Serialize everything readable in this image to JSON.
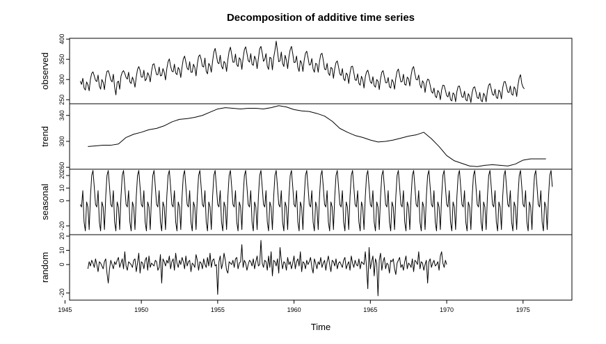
{
  "chart_data": {
    "type": "line",
    "title": "Decomposition of additive time series",
    "xlabel": "Time",
    "xlim": [
      1945.3,
      1978.2
    ],
    "x_ticks": [
      1945,
      1950,
      1955,
      1960,
      1965,
      1970,
      1975
    ],
    "x_tick_labels": [
      "1945",
      "1950",
      "1955",
      "1960",
      "1965",
      "1970",
      "1975"
    ],
    "line_color": "#000000",
    "grid": false,
    "legend": "none",
    "panels": [
      {
        "name": "observed",
        "ylabel": "observed",
        "ylim": [
          240,
          402
        ],
        "y_ticks": [
          250,
          300,
          350,
          400
        ],
        "y_tick_labels": [
          "250",
          "300",
          "350",
          "400"
        ],
        "x_start": 1946.0,
        "x_step": 0.0833333,
        "values": [
          296,
          288,
          303,
          279,
          274,
          294,
          287,
          272,
          301,
          315,
          319,
          309,
          298,
          295,
          311,
          284,
          276,
          300,
          293,
          275,
          305,
          320,
          322,
          312,
          299,
          294,
          313,
          281,
          262,
          293,
          296,
          276,
          308,
          318,
          322,
          315,
          305,
          301,
          318,
          294,
          290,
          306,
          297,
          281,
          306,
          325,
          332,
          323,
          306,
          306,
          323,
          297,
          301,
          317,
          310,
          294,
          320,
          337,
          339,
          325,
          312,
          312,
          331,
          309,
          310,
          327,
          318,
          299,
          326,
          344,
          351,
          333,
          321,
          319,
          338,
          316,
          312,
          330,
          324,
          305,
          331,
          351,
          358,
          343,
          328,
          324,
          344,
          318,
          318,
          338,
          330,
          309,
          338,
          357,
          361,
          350,
          333,
          331,
          353,
          320,
          314,
          340,
          334,
          318,
          345,
          368,
          377,
          360,
          342,
          339,
          360,
          333,
          326,
          345,
          340,
          320,
          349,
          370,
          380,
          362,
          343,
          343,
          363,
          337,
          332,
          354,
          349,
          325,
          353,
          374,
          381,
          365,
          347,
          343,
          364,
          338,
          335,
          358,
          350,
          327,
          352,
          376,
          382,
          366,
          345,
          350,
          364,
          333,
          325,
          355,
          353,
          324,
          354,
          372,
          395,
          370,
          344,
          346,
          368,
          340,
          332,
          360,
          348,
          327,
          356,
          374,
          382,
          364,
          342,
          343,
          358,
          330,
          320,
          347,
          341,
          320,
          348,
          365,
          370,
          354,
          336,
          337,
          352,
          326,
          318,
          340,
          338,
          318,
          344,
          362,
          365,
          348,
          326,
          324,
          340,
          316,
          310,
          330,
          327,
          303,
          327,
          342,
          346,
          331,
          314,
          310,
          327,
          302,
          297,
          316,
          312,
          290,
          316,
          332,
          333,
          317,
          299,
          298,
          314,
          290,
          286,
          308,
          300,
          279,
          306,
          319,
          323,
          310,
          294,
          290,
          307,
          285,
          281,
          300,
          296,
          275,
          302,
          318,
          322,
          307,
          292,
          292,
          305,
          282,
          279,
          300,
          294,
          276,
          303,
          320,
          326,
          310,
          294,
          295,
          313,
          288,
          286,
          306,
          302,
          284,
          310,
          327,
          332,
          314,
          300,
          299,
          311,
          287,
          279,
          297,
          291,
          268,
          291,
          301,
          299,
          286,
          270,
          266,
          279,
          259,
          255,
          273,
          268,
          250,
          274,
          286,
          285,
          273,
          260,
          257,
          270,
          250,
          247,
          267,
          263,
          245,
          270,
          283,
          284,
          270,
          257,
          256,
          271,
          250,
          247,
          265,
          258,
          243,
          268,
          280,
          282,
          269,
          255,
          253,
          268,
          248,
          245,
          266,
          260,
          245,
          272,
          286,
          290,
          277,
          263,
          261,
          276,
          256,
          253,
          274,
          269,
          252,
          279,
          294,
          295,
          282,
          269,
          268,
          284,
          264,
          261,
          282,
          276,
          258,
          286,
          304,
          312,
          290,
          281,
          277
        ]
      },
      {
        "name": "trend",
        "ylabel": "trend",
        "ylim": [
          257,
          358
        ],
        "y_ticks": [
          260,
          300,
          340
        ],
        "y_tick_labels": [
          "260",
          "300",
          "340"
        ],
        "x": [
          1946.5,
          1947.0,
          1947.5,
          1948.0,
          1948.5,
          1949.0,
          1949.5,
          1950.0,
          1950.5,
          1951.0,
          1951.5,
          1952.0,
          1952.5,
          1953.0,
          1953.5,
          1954.0,
          1954.5,
          1955.0,
          1955.5,
          1956.0,
          1956.5,
          1957.0,
          1957.5,
          1958.0,
          1958.5,
          1959.0,
          1959.5,
          1960.0,
          1960.5,
          1961.0,
          1961.5,
          1962.0,
          1962.5,
          1963.0,
          1963.5,
          1964.0,
          1964.5,
          1965.0,
          1965.5,
          1966.0,
          1966.5,
          1967.0,
          1967.5,
          1968.0,
          1968.5,
          1969.0,
          1969.5,
          1970.0,
          1970.5,
          1971.0,
          1971.5,
          1972.0,
          1972.5,
          1973.0,
          1973.5,
          1974.0,
          1974.5,
          1975.0,
          1975.5,
          1976.0,
          1976.5
        ],
        "values": [
          292,
          293,
          294,
          294,
          296,
          306,
          311,
          314,
          318,
          320,
          324,
          330,
          334,
          335,
          337,
          340,
          345,
          350,
          352,
          351,
          350,
          351,
          351,
          350,
          352,
          355,
          353,
          349,
          347,
          346,
          343,
          339,
          331,
          320,
          314,
          309,
          306,
          302,
          299,
          300,
          302,
          305,
          308,
          310,
          314,
          304,
          292,
          278,
          270,
          266,
          262,
          261,
          263,
          264,
          263,
          262,
          265,
          271,
          273,
          273,
          273
        ]
      },
      {
        "name": "seasonal",
        "ylabel": "seasonal",
        "ylim": [
          -27,
          25
        ],
        "y_ticks": [
          -20,
          0,
          10,
          20
        ],
        "y_tick_labels": [
          "-20",
          "0",
          "10",
          "20"
        ],
        "x_start": 1946.0,
        "x_step": 0.0833333,
        "cycle": [
          -3,
          -5,
          8,
          -17,
          -24,
          -1,
          -5,
          -23,
          3,
          20,
          24,
          11
        ]
      },
      {
        "name": "random",
        "ylabel": "random",
        "ylim": [
          -25,
          21
        ],
        "y_ticks": [
          -20,
          0,
          10,
          20
        ],
        "y_tick_labels": [
          "-20",
          "0",
          "10",
          "20"
        ],
        "x_start": 1946.5,
        "x_step": 0.0833333,
        "values": [
          -3,
          2,
          -1,
          3,
          1,
          -2,
          4,
          0,
          -5,
          2,
          1,
          -1,
          -3,
          2,
          4,
          -6,
          -13,
          -3,
          3,
          0,
          -3,
          2,
          0,
          3,
          5,
          -2,
          1,
          4,
          -3,
          9,
          -1,
          -4,
          2,
          1,
          0,
          -2,
          3,
          4,
          -5,
          1,
          8,
          -6,
          2,
          1,
          -3,
          3,
          5,
          -4,
          6,
          -2,
          1,
          0,
          -1,
          3,
          2,
          -4,
          -2,
          7,
          -13,
          4,
          2,
          -1,
          3,
          1,
          6,
          -3,
          2,
          4,
          -4,
          8,
          1,
          -2,
          3,
          0,
          5,
          2,
          -3,
          6,
          -1,
          2,
          3,
          -5,
          1,
          0,
          -2,
          7,
          3,
          -4,
          2,
          1,
          -3,
          4,
          0,
          -2,
          5,
          -1,
          8,
          -2,
          3,
          4,
          -1,
          0,
          -21,
          2,
          6,
          -3,
          1,
          8,
          3,
          -4,
          -6,
          2,
          1,
          0,
          3,
          -2,
          4,
          5,
          -3,
          1,
          2,
          14,
          -2,
          3,
          1,
          -4,
          0,
          3,
          2,
          -1,
          4,
          -3,
          2,
          6,
          -1,
          0,
          17,
          1,
          -2,
          3,
          2,
          -4,
          6,
          -2,
          9,
          -8,
          3,
          2,
          -1,
          4,
          -6,
          12,
          3,
          -3,
          2,
          1,
          -4,
          5,
          0,
          2,
          -3,
          1,
          6,
          -3,
          2,
          4,
          -1,
          9,
          -5,
          2,
          1,
          -3,
          3,
          0,
          2,
          5,
          -2,
          -6,
          4,
          1,
          -3,
          2,
          0,
          5,
          -2,
          1,
          3,
          -4,
          2,
          6,
          0,
          -5,
          3,
          2,
          -1,
          4,
          -3,
          1,
          2,
          0,
          -2,
          3,
          5,
          -3,
          0,
          2,
          -4,
          6,
          1,
          -2,
          3,
          0,
          -1,
          4,
          -3,
          2,
          1,
          0,
          9,
          -2,
          -17,
          12,
          -3,
          2,
          6,
          -8,
          4,
          1,
          -22,
          3,
          8,
          -4,
          2,
          5,
          -3,
          1,
          0,
          -6,
          3,
          2,
          4,
          -3,
          -7,
          1,
          3,
          5,
          -2,
          0,
          -4,
          2,
          6,
          -3,
          1,
          0,
          -2,
          4,
          -5,
          3,
          2,
          0,
          9,
          -3,
          2,
          1,
          -4,
          0,
          3,
          -13,
          2,
          4,
          -2,
          1,
          3,
          -1,
          0,
          2,
          -4,
          6,
          9,
          1,
          -2,
          3,
          0
        ]
      }
    ]
  }
}
